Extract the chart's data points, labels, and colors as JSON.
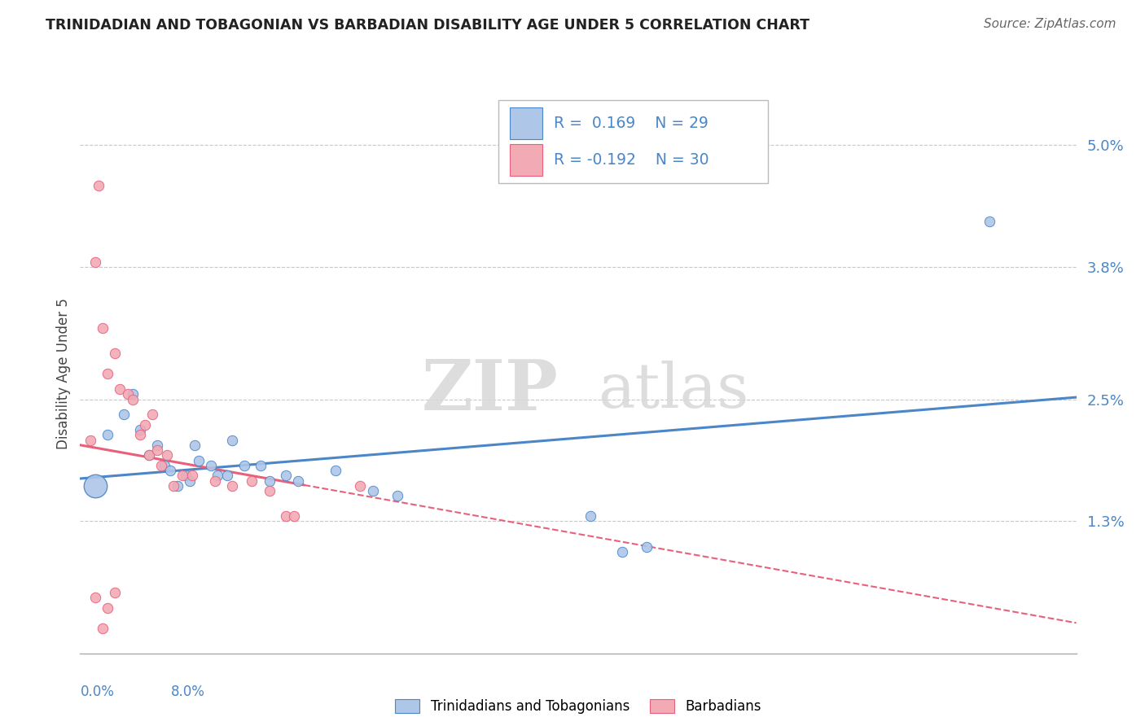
{
  "title": "TRINIDADIAN AND TOBAGONIAN VS BARBADIAN DISABILITY AGE UNDER 5 CORRELATION CHART",
  "source": "Source: ZipAtlas.com",
  "ylabel": "Disability Age Under 5",
  "xlim": [
    0.0,
    8.0
  ],
  "ylim": [
    0.0,
    5.5
  ],
  "yticks": [
    1.3,
    2.5,
    3.8,
    5.0
  ],
  "ytick_labels": [
    "1.3%",
    "2.5%",
    "3.8%",
    "5.0%"
  ],
  "color_blue": "#aec6e8",
  "color_pink": "#f2aab5",
  "line_blue": "#4a86c8",
  "line_pink": "#e8607a",
  "watermark_zip": "ZIP",
  "watermark_atlas": "atlas",
  "blue_scatter": [
    [
      0.22,
      2.15
    ],
    [
      0.35,
      2.35
    ],
    [
      0.42,
      2.55
    ],
    [
      0.48,
      2.2
    ],
    [
      0.55,
      1.95
    ],
    [
      0.62,
      2.05
    ],
    [
      0.68,
      1.85
    ],
    [
      0.72,
      1.8
    ],
    [
      0.78,
      1.65
    ],
    [
      0.85,
      1.75
    ],
    [
      0.88,
      1.7
    ],
    [
      0.92,
      2.05
    ],
    [
      0.95,
      1.9
    ],
    [
      1.05,
      1.85
    ],
    [
      1.1,
      1.75
    ],
    [
      1.18,
      1.75
    ],
    [
      1.22,
      2.1
    ],
    [
      1.32,
      1.85
    ],
    [
      1.45,
      1.85
    ],
    [
      1.52,
      1.7
    ],
    [
      1.65,
      1.75
    ],
    [
      1.75,
      1.7
    ],
    [
      2.05,
      1.8
    ],
    [
      2.35,
      1.6
    ],
    [
      2.55,
      1.55
    ],
    [
      4.1,
      1.35
    ],
    [
      4.35,
      1.0
    ],
    [
      4.55,
      1.05
    ],
    [
      7.3,
      4.25
    ]
  ],
  "pink_scatter": [
    [
      0.08,
      2.1
    ],
    [
      0.12,
      3.85
    ],
    [
      0.18,
      3.2
    ],
    [
      0.22,
      2.75
    ],
    [
      0.28,
      2.95
    ],
    [
      0.32,
      2.6
    ],
    [
      0.38,
      2.55
    ],
    [
      0.42,
      2.5
    ],
    [
      0.48,
      2.15
    ],
    [
      0.52,
      2.25
    ],
    [
      0.55,
      1.95
    ],
    [
      0.58,
      2.35
    ],
    [
      0.62,
      2.0
    ],
    [
      0.65,
      1.85
    ],
    [
      0.7,
      1.95
    ],
    [
      0.75,
      1.65
    ],
    [
      0.82,
      1.75
    ],
    [
      0.9,
      1.75
    ],
    [
      1.08,
      1.7
    ],
    [
      1.22,
      1.65
    ],
    [
      1.38,
      1.7
    ],
    [
      1.52,
      1.6
    ],
    [
      1.65,
      1.35
    ],
    [
      1.72,
      1.35
    ],
    [
      2.25,
      1.65
    ],
    [
      0.15,
      4.6
    ],
    [
      0.12,
      0.55
    ],
    [
      0.22,
      0.45
    ],
    [
      0.18,
      0.25
    ],
    [
      0.28,
      0.6
    ]
  ],
  "big_blue_x": 0.12,
  "big_blue_y": 1.65,
  "blue_line_x0": 0.0,
  "blue_line_y0": 1.72,
  "blue_line_x1": 8.0,
  "blue_line_y1": 2.52,
  "pink_line_x0": 0.0,
  "pink_line_y0": 2.05,
  "pink_line_x1": 8.0,
  "pink_line_y1": 0.3,
  "pink_solid_end_x": 1.8,
  "background_color": "#ffffff",
  "grid_color": "#c8c8c8"
}
